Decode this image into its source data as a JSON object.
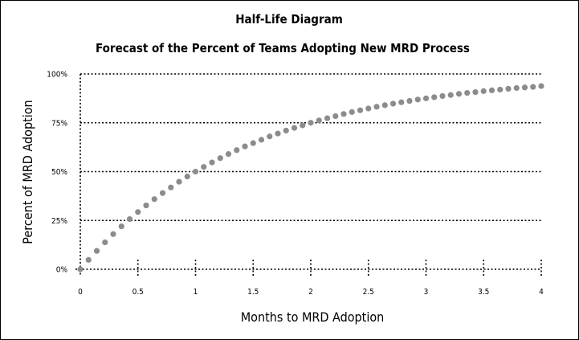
{
  "chart_data": {
    "type": "scatter",
    "title": "Half-Life Diagram",
    "subtitle": "Forecast of the Percent of Teams Adopting New MRD Process",
    "xlabel": "Months to MRD Adoption",
    "ylabel": "Percent of MRD Adoption",
    "xlim": [
      0,
      4
    ],
    "ylim": [
      0,
      100
    ],
    "x_ticks": [
      0,
      0.5,
      1,
      1.5,
      2,
      2.5,
      3,
      3.5,
      4
    ],
    "x_tick_labels": [
      "0",
      "0.5",
      "1",
      "1.5",
      "2",
      "2.5",
      "3",
      "3.5",
      "4"
    ],
    "y_ticks": [
      0,
      25,
      50,
      75,
      100
    ],
    "y_tick_labels": [
      "0%",
      "25%",
      "50%",
      "75%",
      "100%"
    ],
    "grid": true,
    "half_life_months": 1,
    "point_color": "#8c8c8c",
    "series": [
      {
        "x": [
          0,
          0.0714,
          0.1429,
          0.2143,
          0.2857,
          0.3571,
          0.4286,
          0.5,
          0.5714,
          0.6429,
          0.7143,
          0.7857,
          0.8571,
          0.9286,
          1,
          1.0714,
          1.1429,
          1.2143,
          1.2857,
          1.3571,
          1.4286,
          1.5,
          1.5714,
          1.6429,
          1.7143,
          1.7857,
          1.8571,
          1.9286,
          2,
          2.0714,
          2.1429,
          2.2143,
          2.2857,
          2.3571,
          2.4286,
          2.5,
          2.5714,
          2.6429,
          2.7143,
          2.7857,
          2.8571,
          2.9286,
          3,
          3.0714,
          3.1429,
          3.2143,
          3.2857,
          3.3571,
          3.4286,
          3.5,
          3.5714,
          3.6429,
          3.7143,
          3.7857,
          3.8571,
          3.9286,
          4
        ],
        "y": [
          0,
          4.8,
          9.4,
          13.8,
          18,
          22,
          25.7,
          29.3,
          32.7,
          35.9,
          39,
          41.9,
          44.8,
          47.5,
          50,
          52.4,
          54.7,
          56.9,
          59,
          61,
          62.9,
          64.6,
          66.3,
          68,
          69.5,
          71,
          72.4,
          73.7,
          75,
          76.2,
          77.3,
          78.4,
          79.5,
          80.5,
          81.4,
          82.3,
          83.2,
          84,
          84.8,
          85.5,
          86.2,
          86.9,
          87.5,
          88.1,
          88.7,
          89.2,
          89.8,
          90.3,
          90.7,
          91.2,
          91.6,
          92,
          92.4,
          92.8,
          93.1,
          93.4,
          93.8
        ]
      }
    ]
  }
}
